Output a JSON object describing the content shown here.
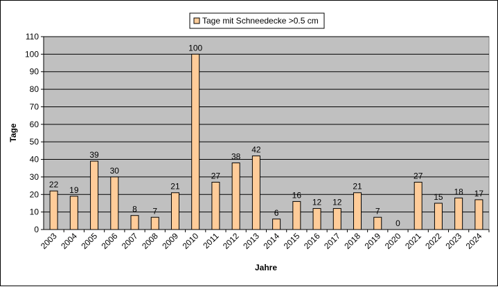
{
  "chart_data": {
    "type": "bar",
    "title": "",
    "xlabel": "Jahre",
    "ylabel": "Tage",
    "ylim": [
      0,
      110
    ],
    "ytick_step": 10,
    "grid": true,
    "legend_position": "top-center",
    "categories": [
      "2003",
      "2004",
      "2005",
      "2006",
      "2007",
      "2008",
      "2009",
      "2010",
      "2011",
      "2012",
      "2013",
      "2014",
      "2015",
      "2016",
      "2017",
      "2018",
      "2019",
      "2020",
      "2021",
      "2022",
      "2023",
      "2024"
    ],
    "series": [
      {
        "name": "Tage mit Schneedecke >0.5 cm",
        "values": [
          22,
          19,
          39,
          30,
          8,
          7,
          21,
          100,
          27,
          38,
          42,
          6,
          16,
          12,
          12,
          21,
          7,
          0,
          27,
          15,
          18,
          17
        ]
      }
    ],
    "colors": {
      "bar_fill": "#FFCC99",
      "bar_stroke": "#000000",
      "plot_background": "#C0C0C0",
      "gridline": "#000000"
    }
  }
}
